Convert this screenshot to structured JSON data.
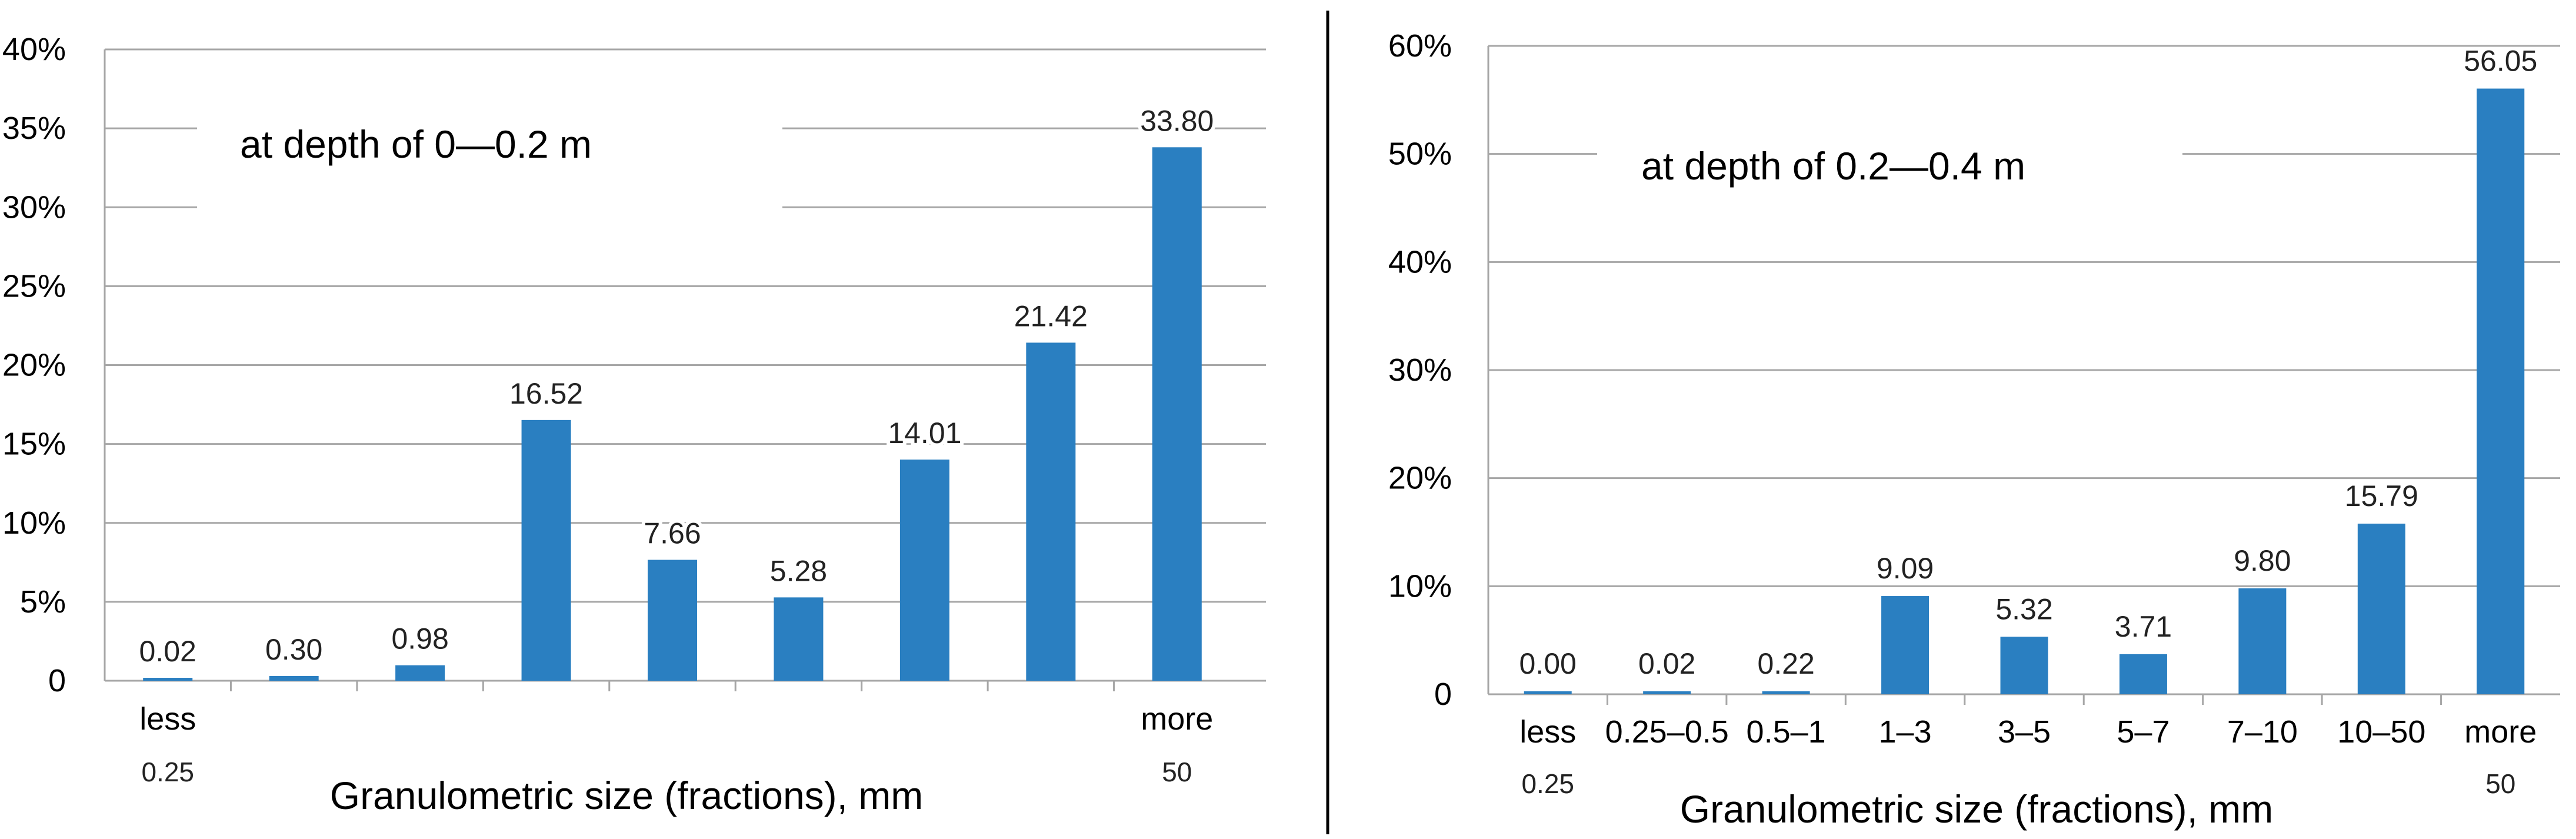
{
  "bar_color": "#2a7fc1",
  "grid_color": "#a6a6a6",
  "divider_color": "#000000",
  "chart_data": [
    {
      "type": "bar",
      "annotation": "at depth of 0—0.2 m",
      "xlabel": "Granulometric size (fractions), mm",
      "ylabel": "",
      "ylim": [
        0,
        40
      ],
      "yticks": [
        0,
        5,
        10,
        15,
        20,
        25,
        30,
        35,
        40
      ],
      "ytick_labels": [
        "0",
        "5%",
        "10%",
        "15%",
        "20%",
        "25%",
        "30%",
        "35%",
        "40%"
      ],
      "categories": [
        "less 0.25",
        "",
        "",
        "",
        "",
        "",
        "",
        "",
        "more 50"
      ],
      "category_lines": [
        [
          "less",
          "0.25"
        ],
        [],
        [],
        [],
        [],
        [],
        [],
        [],
        [
          "more",
          "50"
        ]
      ],
      "values": [
        0.02,
        0.3,
        0.98,
        16.52,
        7.66,
        5.28,
        14.01,
        21.42,
        33.8
      ],
      "value_labels": [
        "0.02",
        "0.30",
        "0.98",
        "16.52",
        "7.66",
        "5.28",
        "14.01",
        "21.42",
        "33.80"
      ],
      "grid": true
    },
    {
      "type": "bar",
      "annotation": "at depth of 0.2—0.4 m",
      "xlabel": "Granulometric size (fractions), mm",
      "ylabel": "",
      "ylim": [
        0,
        60
      ],
      "yticks": [
        0,
        10,
        20,
        30,
        40,
        50,
        60
      ],
      "ytick_labels": [
        "0",
        "10%",
        "20%",
        "30%",
        "40%",
        "50%",
        "60%"
      ],
      "categories": [
        "less 0.25",
        "0.25–0.5",
        "0.5–1",
        "1–3",
        "3–5",
        "5–7",
        "7–10",
        "10–50",
        "more 50"
      ],
      "category_lines": [
        [
          "less",
          "0.25"
        ],
        [
          "0.25–0.5"
        ],
        [
          "0.5–1"
        ],
        [
          "1–3"
        ],
        [
          "3–5"
        ],
        [
          "5–7"
        ],
        [
          "7–10"
        ],
        [
          "10–50"
        ],
        [
          "more",
          "50"
        ]
      ],
      "values": [
        0.0,
        0.02,
        0.22,
        9.09,
        5.32,
        3.71,
        9.8,
        15.79,
        56.05
      ],
      "value_labels": [
        "0.00",
        "0.02",
        "0.22",
        "9.09",
        "5.32",
        "3.71",
        "9.80",
        "15.79",
        "56.05"
      ],
      "grid": true
    }
  ]
}
